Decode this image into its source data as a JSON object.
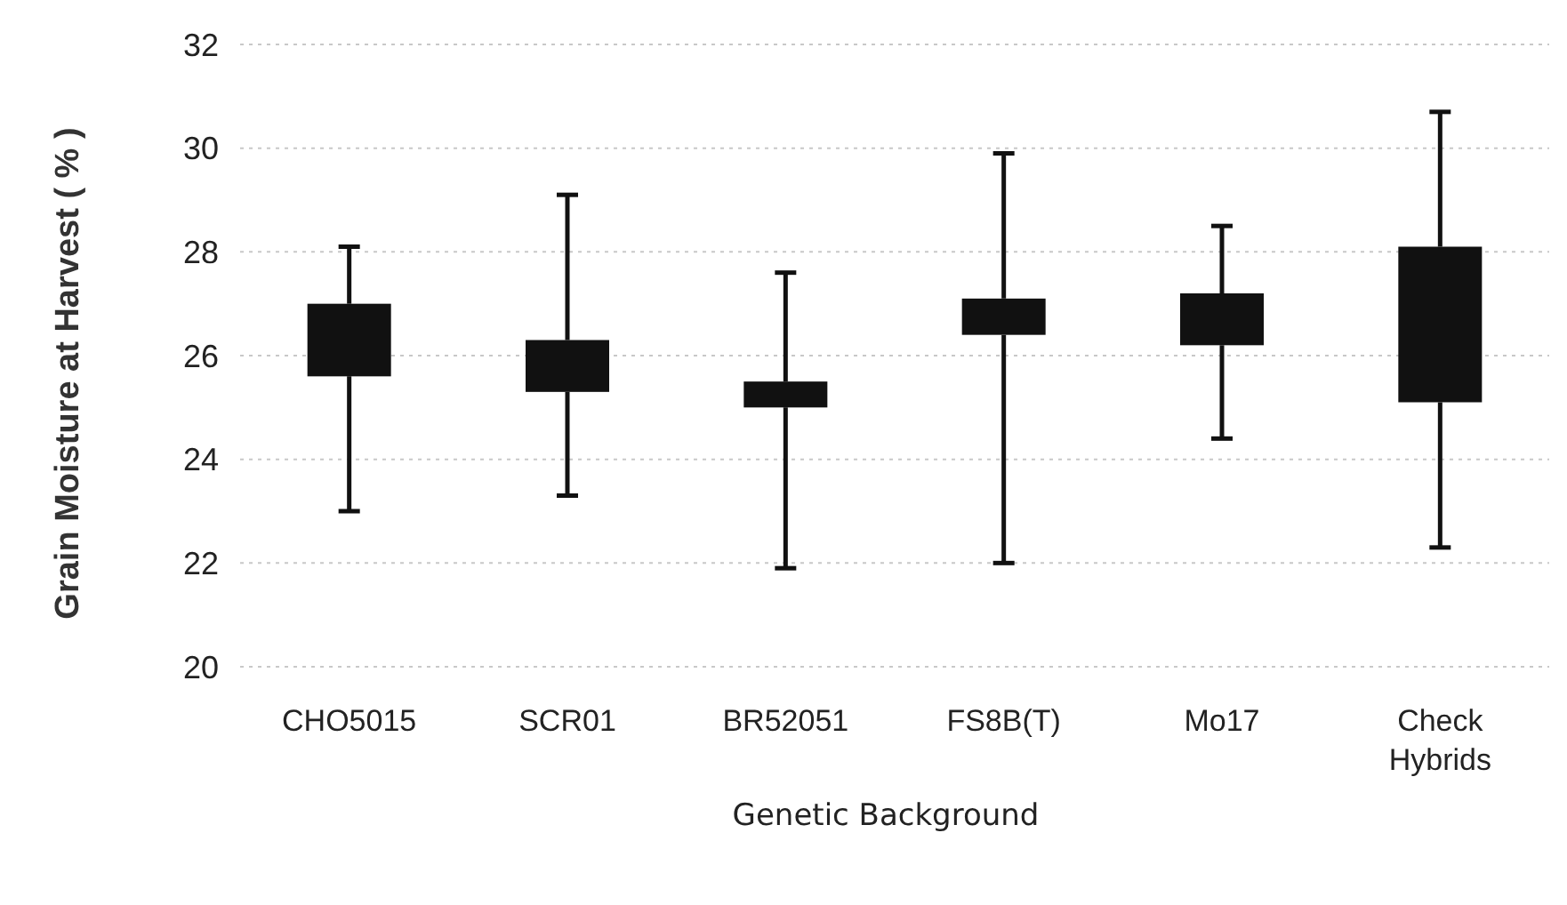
{
  "chart_data": {
    "type": "box",
    "xlabel": "Genetic Background",
    "ylabel": "Grain Moisture at Harvest ( % )",
    "categories": [
      "CHO5015",
      "SCR01",
      "BR52051",
      "FS8B(T)",
      "Mo17",
      "Check Hybrids"
    ],
    "color": "#111111",
    "boxes": [
      {
        "low": 23.0,
        "q1": 25.6,
        "q3": 27.0,
        "high": 28.1
      },
      {
        "low": 23.3,
        "q1": 25.3,
        "q3": 26.3,
        "high": 29.1
      },
      {
        "low": 21.9,
        "q1": 25.0,
        "q3": 25.5,
        "high": 27.6
      },
      {
        "low": 22.0,
        "q1": 26.4,
        "q3": 27.1,
        "high": 29.9
      },
      {
        "low": 24.4,
        "q1": 26.2,
        "q3": 27.2,
        "high": 28.5
      },
      {
        "low": 22.3,
        "q1": 25.1,
        "q3": 28.1,
        "high": 30.7
      }
    ],
    "ylim": [
      20,
      32
    ],
    "yticks": [
      20,
      22,
      24,
      26,
      28,
      30,
      32
    ],
    "grid": "y"
  }
}
